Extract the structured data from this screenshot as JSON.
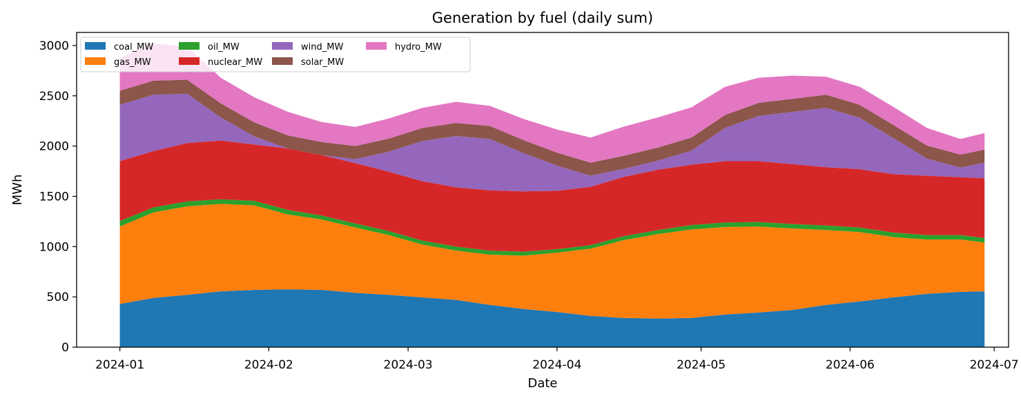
{
  "chart_data": {
    "type": "area",
    "stacked": true,
    "title": "Generation by fuel (daily sum)",
    "xlabel": "Date",
    "ylabel": "MWh",
    "xlim": [
      "2023-12-23",
      "2024-07-04"
    ],
    "ylim": [
      0,
      3130
    ],
    "yticks": [
      0,
      500,
      1000,
      1500,
      2000,
      2500,
      3000
    ],
    "xticks": [
      "2024-01-01",
      "2024-02-01",
      "2024-03-01",
      "2024-04-01",
      "2024-05-01",
      "2024-06-01",
      "2024-07-01"
    ],
    "xtick_labels": [
      "2024-01",
      "2024-02",
      "2024-03",
      "2024-04",
      "2024-05",
      "2024-06",
      "2024-07"
    ],
    "grid": false,
    "legend_position": "upper-left",
    "x": [
      "2024-01-01",
      "2024-01-08",
      "2024-01-15",
      "2024-01-22",
      "2024-01-29",
      "2024-02-05",
      "2024-02-12",
      "2024-02-19",
      "2024-02-26",
      "2024-03-04",
      "2024-03-11",
      "2024-03-18",
      "2024-03-25",
      "2024-04-01",
      "2024-04-08",
      "2024-04-15",
      "2024-04-22",
      "2024-04-29",
      "2024-05-06",
      "2024-05-13",
      "2024-05-20",
      "2024-05-27",
      "2024-06-03",
      "2024-06-10",
      "2024-06-17",
      "2024-06-24",
      "2024-06-29"
    ],
    "series": [
      {
        "name": "coal_MW",
        "color": "#1f77b4",
        "values": [
          430,
          490,
          520,
          555,
          570,
          575,
          570,
          540,
          520,
          495,
          470,
          420,
          380,
          350,
          310,
          290,
          285,
          290,
          325,
          345,
          370,
          420,
          455,
          495,
          530,
          550,
          555
        ]
      },
      {
        "name": "gas_MW",
        "color": "#ff7f0e",
        "values": [
          770,
          850,
          880,
          870,
          840,
          745,
          700,
          650,
          595,
          525,
          490,
          500,
          530,
          590,
          670,
          775,
          840,
          880,
          870,
          855,
          810,
          745,
          690,
          600,
          540,
          520,
          485
        ]
      },
      {
        "name": "oil_MW",
        "color": "#2ca02c",
        "values": [
          55,
          50,
          50,
          45,
          45,
          45,
          40,
          40,
          40,
          40,
          40,
          40,
          40,
          35,
          35,
          40,
          40,
          45,
          45,
          45,
          45,
          45,
          45,
          45,
          45,
          45,
          45
        ]
      },
      {
        "name": "nuclear_MW",
        "color": "#d62728",
        "values": [
          595,
          560,
          580,
          585,
          560,
          610,
          600,
          600,
          590,
          590,
          590,
          600,
          600,
          580,
          580,
          590,
          600,
          600,
          610,
          605,
          595,
          580,
          580,
          580,
          590,
          575,
          595
        ]
      },
      {
        "name": "wind_MW",
        "color": "#9467bd",
        "values": [
          560,
          560,
          490,
          230,
          80,
          0,
          0,
          40,
          200,
          400,
          510,
          510,
          380,
          250,
          110,
          80,
          90,
          140,
          330,
          450,
          520,
          590,
          510,
          360,
          170,
          95,
          155
        ]
      },
      {
        "name": "solar_MW",
        "color": "#8c564b",
        "values": [
          140,
          140,
          140,
          140,
          140,
          130,
          130,
          130,
          130,
          130,
          130,
          130,
          130,
          130,
          130,
          130,
          130,
          130,
          130,
          130,
          130,
          130,
          130,
          130,
          130,
          130,
          130
        ]
      },
      {
        "name": "hydro_MW",
        "color": "#e377c2",
        "values": [
          325,
          370,
          330,
          255,
          250,
          235,
          200,
          190,
          200,
          200,
          210,
          200,
          210,
          230,
          250,
          290,
          300,
          300,
          280,
          250,
          230,
          180,
          180,
          180,
          175,
          155,
          165
        ]
      }
    ]
  }
}
